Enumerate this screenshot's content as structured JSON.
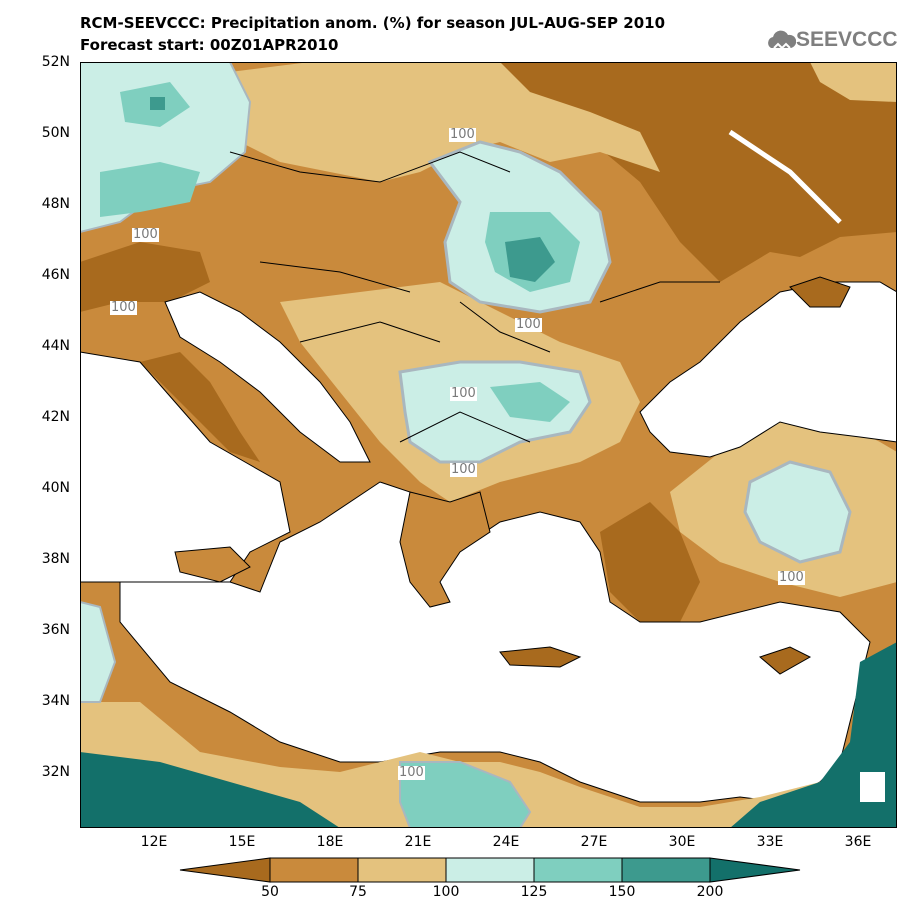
{
  "title_line1": "RCM-SEEVCCC: Precipitation anom. (%) for season JUL-AUG-SEP 2010",
  "title_line2": "Forecast start: 00Z01APR2010",
  "logo_text": "SEEVCCC",
  "logo_icon": "cloud-icon",
  "lat_labels": [
    "52N",
    "50N",
    "48N",
    "46N",
    "44N",
    "42N",
    "40N",
    "38N",
    "36N",
    "34N",
    "32N"
  ],
  "lon_labels": [
    "12E",
    "15E",
    "18E",
    "21E",
    "24E",
    "27E",
    "30E",
    "33E",
    "36E"
  ],
  "colorbar": {
    "levels": [
      "50",
      "75",
      "100",
      "125",
      "150",
      "200"
    ],
    "colors": [
      "#a86a1e",
      "#c98a3c",
      "#e4c27e",
      "#cbeee6",
      "#7fcfbf",
      "#3d9a8e",
      "#13706a"
    ]
  },
  "contour_labels": [
    "100",
    "100",
    "100",
    "100",
    "100",
    "100",
    "100",
    "100"
  ],
  "colors": {
    "sea": "#ffffff",
    "dry_strong": "#a86a1e",
    "dry": "#c98a3c",
    "dry_light": "#e4c27e",
    "wet_light": "#cbeee6",
    "wet": "#7fcfbf",
    "wet_strong": "#3d9a8e",
    "wet_very": "#13706a",
    "contour_line": "#a9b7bf"
  }
}
